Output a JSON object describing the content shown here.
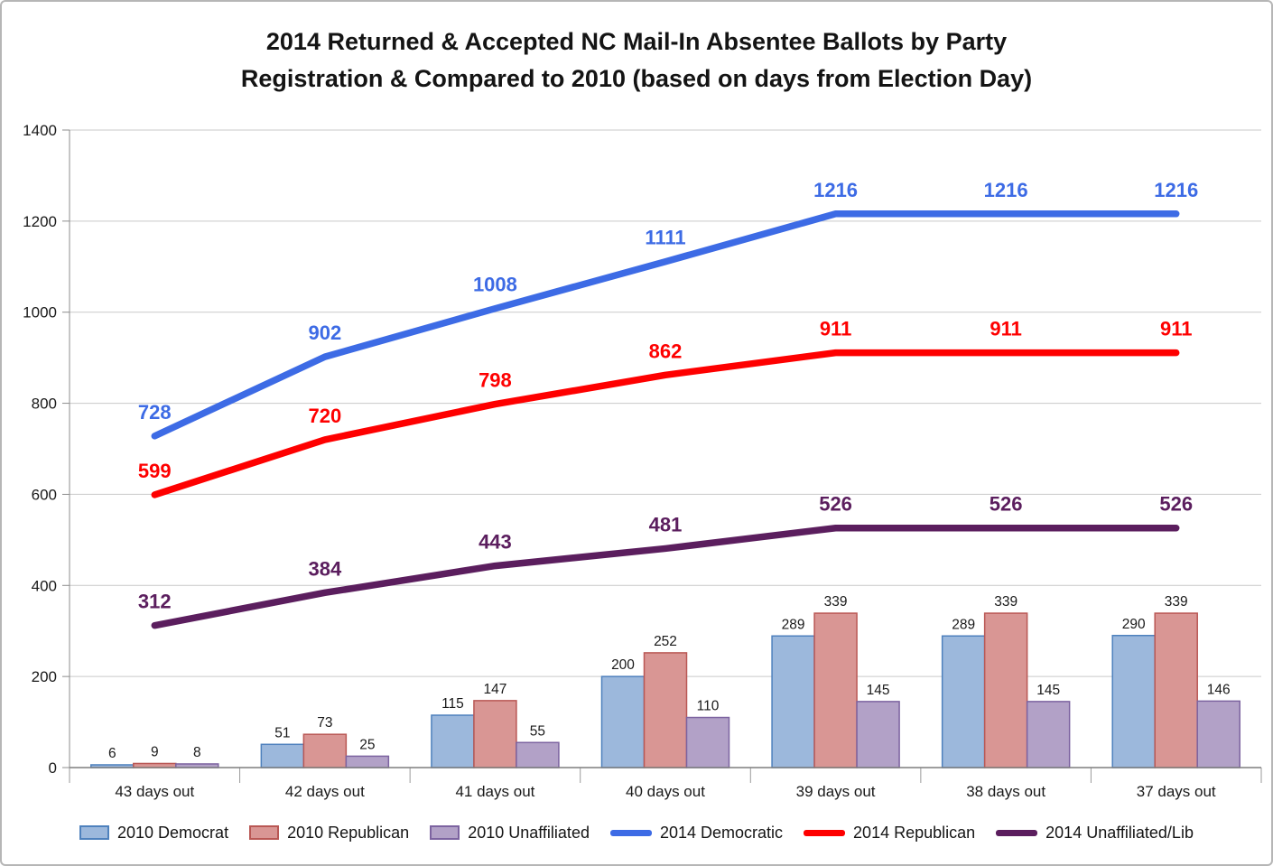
{
  "title": {
    "line1": "2014 Returned & Accepted NC Mail-In Absentee Ballots by Party",
    "line2": "Registration & Compared to 2010 (based on days from Election Day)"
  },
  "chart_data": {
    "type": "bar",
    "subtype": "combo-bar-line",
    "categories": [
      "43 days out",
      "42 days out",
      "41 days out",
      "40 days out",
      "39 days out",
      "38 days out",
      "37 days out"
    ],
    "bar_series": [
      {
        "name": "2010 Democrat",
        "values": [
          6,
          51,
          115,
          200,
          289,
          289,
          290
        ],
        "fill": "#9CB8DC",
        "stroke": "#4E81BD"
      },
      {
        "name": "2010 Republican",
        "values": [
          9,
          73,
          147,
          252,
          339,
          339,
          339
        ],
        "fill": "#D99694",
        "stroke": "#B95754"
      },
      {
        "name": "2010 Unaffiliated",
        "values": [
          8,
          25,
          55,
          110,
          145,
          145,
          146
        ],
        "fill": "#B2A1C7",
        "stroke": "#7C63A0"
      }
    ],
    "line_series": [
      {
        "name": "2014 Democratic",
        "values": [
          728,
          902,
          1008,
          1111,
          1216,
          1216,
          1216
        ],
        "color": "#3D6BE5"
      },
      {
        "name": "2014 Republican",
        "values": [
          599,
          720,
          798,
          862,
          911,
          911,
          911
        ],
        "color": "#FE0000"
      },
      {
        "name": "2014 Unaffiliated/Lib",
        "values": [
          312,
          384,
          443,
          481,
          526,
          526,
          526
        ],
        "color": "#5B1E5E"
      }
    ],
    "ylim": [
      0,
      1400
    ],
    "ytick_step": 200,
    "grid": true,
    "legend_position": "bottom",
    "xlabel": "",
    "ylabel": ""
  }
}
